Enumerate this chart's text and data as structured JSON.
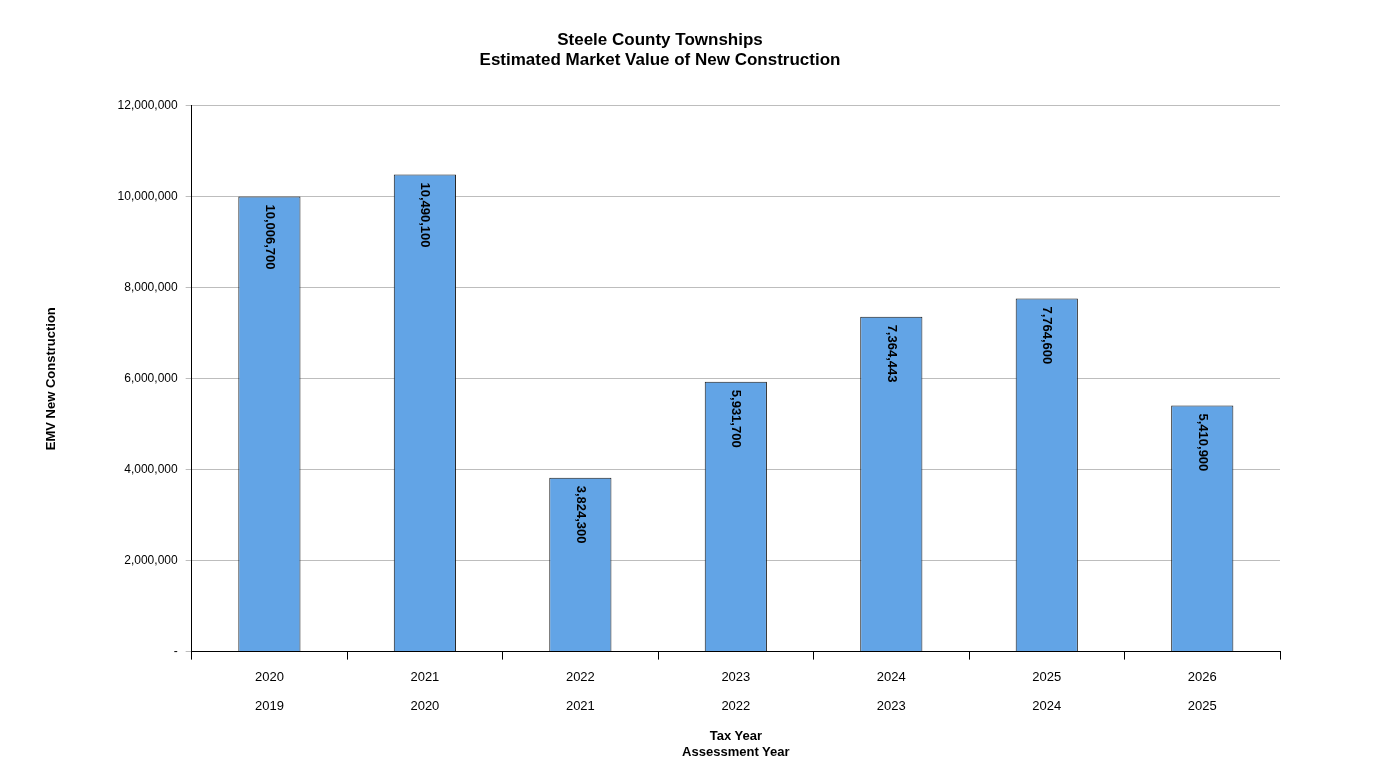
{
  "chart_data": {
    "type": "bar",
    "title": "Steele County Townships",
    "subtitle": "Estimated Market Value of New Construction",
    "xlabel": "Tax Year\nAssessment Year",
    "ylabel": "EMV New Construction",
    "categories": [
      "2020\n2019",
      "2021\n2020",
      "2022\n2021",
      "2023\n2022",
      "2024\n2023",
      "2025\n2024",
      "2026\n2025"
    ],
    "values": [
      10006700,
      10490100,
      3824300,
      5931700,
      7364443,
      7764600,
      5410900
    ],
    "color": "#62a4e6",
    "ylim": [
      0,
      12000000
    ],
    "yticks": [
      {
        "value": 0,
        "label": "-"
      },
      {
        "value": 2000000,
        "label": "2,000,000"
      },
      {
        "value": 4000000,
        "label": "4,000,000"
      },
      {
        "value": 6000000,
        "label": "6,000,000"
      },
      {
        "value": 8000000,
        "label": "8,000,000"
      },
      {
        "value": 10000000,
        "label": "10,000,000"
      },
      {
        "value": 12000000,
        "label": "12,000,000"
      }
    ],
    "value_labels": [
      "10,006,700",
      "10,490,100",
      "3,824,300",
      "5,931,700",
      "7,364,443",
      "7,764,600",
      "5,410,900"
    ],
    "grid": "y"
  }
}
